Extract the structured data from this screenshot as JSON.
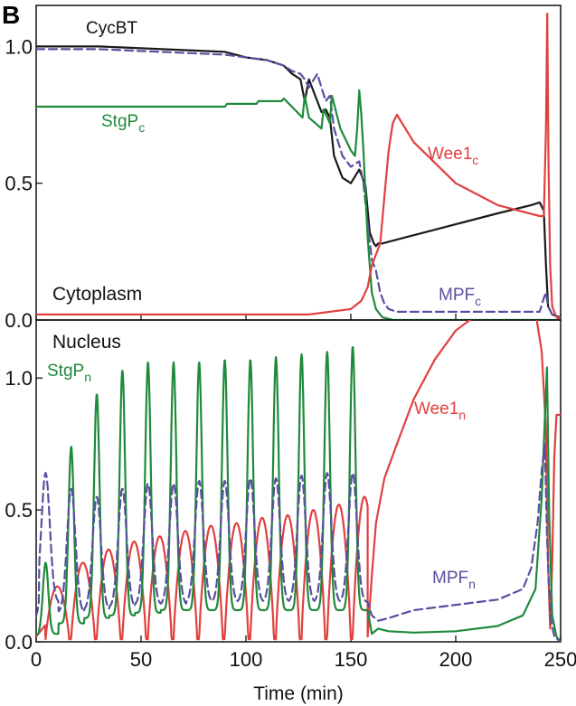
{
  "panel_letter": "B",
  "colors": {
    "CycBT": "#1a1a1a",
    "StgP": "#1f8a3a",
    "Wee1": "#e04040",
    "MPF": "#5a4fa0"
  },
  "chart_data": [
    {
      "type": "line",
      "region_label": "Cytoplasm",
      "xlim": [
        0,
        250
      ],
      "ylim": [
        0,
        1.15
      ],
      "x_ticks": [
        0,
        50,
        100,
        150,
        200,
        250
      ],
      "y_ticks": [
        0.0,
        0.5,
        1.0
      ],
      "y_tick_labels": [
        "0.0",
        "0.5",
        "1.0"
      ],
      "series": [
        {
          "key": "CycBT",
          "name": "CycBT",
          "color": "#1a1a1a",
          "style": "solid",
          "x": [
            0,
            30,
            60,
            90,
            100,
            110,
            118,
            122,
            126,
            128,
            130,
            134,
            136,
            138,
            140,
            142,
            146,
            150,
            154,
            157,
            159,
            161,
            162,
            163,
            165,
            175,
            200,
            220,
            236,
            240,
            242,
            243,
            244,
            246,
            250
          ],
          "y": [
            1.0,
            1.0,
            0.99,
            0.98,
            0.96,
            0.95,
            0.93,
            0.9,
            0.88,
            0.8,
            0.88,
            0.8,
            0.76,
            0.77,
            0.74,
            0.6,
            0.52,
            0.5,
            0.55,
            0.49,
            0.32,
            0.28,
            0.27,
            0.28,
            0.28,
            0.3,
            0.35,
            0.39,
            0.42,
            0.43,
            0.4,
            0.2,
            0.05,
            0.02,
            0.01
          ]
        },
        {
          "key": "MPFc",
          "name": "MPF",
          "sub": "c",
          "color": "#5a4fa0",
          "style": "dashed",
          "x": [
            0,
            30,
            60,
            90,
            100,
            110,
            118,
            122,
            126,
            128,
            130,
            134,
            138,
            140,
            142,
            146,
            150,
            154,
            156,
            158,
            160,
            162,
            164,
            166,
            168,
            172,
            200,
            240,
            242,
            243,
            244,
            246,
            250
          ],
          "y": [
            0.99,
            0.99,
            0.98,
            0.97,
            0.96,
            0.95,
            0.93,
            0.91,
            0.9,
            0.88,
            0.85,
            0.9,
            0.8,
            0.82,
            0.7,
            0.6,
            0.56,
            0.58,
            0.5,
            0.35,
            0.22,
            0.18,
            0.1,
            0.06,
            0.04,
            0.03,
            0.03,
            0.03,
            0.08,
            0.1,
            0.05,
            0.02,
            0.01
          ]
        },
        {
          "key": "StgPc",
          "name": "StgP",
          "sub": "c",
          "color": "#1f8a3a",
          "style": "solid",
          "x": [
            0,
            90,
            91,
            105,
            106,
            117,
            118,
            127,
            128,
            130,
            136,
            137,
            140,
            141,
            145,
            150,
            152,
            153,
            154,
            155,
            156,
            158,
            160,
            162,
            165,
            170,
            250
          ],
          "y": [
            0.78,
            0.78,
            0.79,
            0.79,
            0.8,
            0.8,
            0.81,
            0.74,
            0.82,
            0.74,
            0.7,
            0.77,
            0.72,
            0.82,
            0.7,
            0.62,
            0.6,
            0.7,
            0.84,
            0.75,
            0.62,
            0.3,
            0.1,
            0.04,
            0.01,
            0.0,
            0.0
          ]
        },
        {
          "key": "Wee1c",
          "name": "Wee1",
          "sub": "c",
          "color": "#e04040",
          "style": "solid",
          "x": [
            0,
            100,
            130,
            150,
            155,
            158,
            160,
            164,
            166,
            168,
            170,
            172,
            180,
            200,
            220,
            240,
            242,
            243,
            243.6,
            244.2,
            245,
            246,
            248,
            250
          ],
          "y": [
            0.02,
            0.02,
            0.02,
            0.04,
            0.07,
            0.12,
            0.2,
            0.28,
            0.45,
            0.62,
            0.72,
            0.75,
            0.65,
            0.5,
            0.42,
            0.38,
            0.38,
            0.7,
            1.12,
            0.6,
            0.2,
            0.05,
            0.01,
            0.0
          ]
        }
      ],
      "annotations": [
        {
          "series": "CycBT",
          "text": "CycBT",
          "sub": ""
        },
        {
          "series": "StgPc",
          "text": "StgP",
          "sub": "c"
        },
        {
          "series": "Wee1c",
          "text": "Wee1",
          "sub": "c"
        },
        {
          "series": "MPFc",
          "text": "MPF",
          "sub": "c"
        }
      ]
    },
    {
      "type": "line",
      "region_label": "Nucleus",
      "xlabel": "Time (min)",
      "xlim": [
        0,
        250
      ],
      "ylim": [
        0,
        1.22
      ],
      "x_ticks": [
        0,
        50,
        100,
        150,
        200,
        250
      ],
      "x_tick_labels": [
        "0",
        "50",
        "100",
        "150",
        "200",
        "250"
      ],
      "y_ticks": [
        0.0,
        0.5,
        1.0
      ],
      "y_tick_labels": [
        "0.0",
        "0.5",
        "1.0"
      ],
      "oscillation": {
        "period": 12.2,
        "first_peak": 4.5,
        "cycles": 13,
        "StgPn_peaks": [
          0.3,
          0.74,
          0.94,
          1.03,
          1.06,
          1.06,
          1.06,
          1.07,
          1.07,
          1.08,
          1.09,
          1.1,
          1.12
        ],
        "StgPn_troughs": [
          0.03,
          0.07,
          0.09,
          0.1,
          0.11,
          0.12,
          0.12,
          0.12,
          0.12,
          0.12,
          0.12,
          0.12,
          0.12
        ],
        "MPFn_peaks": [
          0.64,
          0.58,
          0.55,
          0.58,
          0.6,
          0.6,
          0.61,
          0.61,
          0.62,
          0.62,
          0.63,
          0.64,
          0.64
        ],
        "MPFn_troughs": [
          0.15,
          0.11,
          0.12,
          0.13,
          0.14,
          0.14,
          0.15,
          0.15,
          0.15,
          0.15,
          0.15,
          0.15,
          0.15
        ],
        "Wee1n_peaks": [
          0.21,
          0.3,
          0.35,
          0.38,
          0.4,
          0.42,
          0.44,
          0.45,
          0.47,
          0.48,
          0.5,
          0.52,
          0.55
        ]
      },
      "series": [
        {
          "key": "StgPn",
          "name": "StgP",
          "sub": "n",
          "color": "#1f8a3a",
          "style": "solid"
        },
        {
          "key": "MPFn",
          "name": "MPF",
          "sub": "n",
          "color": "#5a4fa0",
          "style": "dashed"
        },
        {
          "key": "Wee1n",
          "name": "Wee1",
          "sub": "n",
          "color": "#e04040",
          "style": "solid"
        }
      ],
      "tail": {
        "StgPn": {
          "x": [
            160,
            163,
            168,
            180,
            200,
            220,
            232,
            238,
            241,
            242.5,
            243.5,
            244.5,
            246,
            248,
            250
          ],
          "y": [
            0.03,
            0.05,
            0.04,
            0.035,
            0.04,
            0.06,
            0.1,
            0.2,
            0.55,
            0.85,
            1.04,
            0.5,
            0.1,
            0.02,
            0.0
          ]
        },
        "MPFn": {
          "x": [
            160,
            163,
            168,
            180,
            200,
            220,
            232,
            236,
            239,
            241,
            242.5,
            243.5,
            245,
            247,
            250
          ],
          "y": [
            0.1,
            0.08,
            0.09,
            0.12,
            0.14,
            0.16,
            0.2,
            0.28,
            0.45,
            0.65,
            0.75,
            0.4,
            0.1,
            0.02,
            0.0
          ]
        },
        "Wee1n": {
          "x": [
            158,
            160,
            162,
            166,
            172,
            180,
            190,
            200,
            210,
            220,
            230,
            238,
            241,
            243,
            244,
            245,
            246,
            247,
            248,
            250
          ],
          "y": [
            0.02,
            0.25,
            0.45,
            0.62,
            0.75,
            0.92,
            1.07,
            1.18,
            1.24,
            1.28,
            1.3,
            1.25,
            1.1,
            0.8,
            0.3,
            0.05,
            0.3,
            0.7,
            0.86,
            0.86
          ]
        }
      },
      "annotations": [
        {
          "series": "StgPn",
          "text": "StgP",
          "sub": "n"
        },
        {
          "series": "Wee1n",
          "text": "Wee1",
          "sub": "n"
        },
        {
          "series": "MPFn",
          "text": "MPF",
          "sub": "n"
        }
      ]
    }
  ]
}
